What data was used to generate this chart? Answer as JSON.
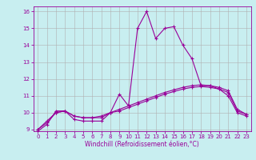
{
  "xlabel": "Windchill (Refroidissement éolien,°C)",
  "x_values": [
    0,
    1,
    2,
    3,
    4,
    5,
    6,
    7,
    8,
    9,
    10,
    11,
    12,
    13,
    14,
    15,
    16,
    17,
    18,
    19,
    20,
    21,
    22,
    23
  ],
  "line1_y": [
    8.9,
    9.3,
    10.1,
    10.1,
    9.6,
    9.5,
    9.5,
    9.5,
    10.0,
    11.1,
    10.4,
    15.0,
    16.0,
    14.4,
    15.0,
    15.1,
    14.0,
    13.2,
    11.6,
    11.6,
    11.4,
    11.0,
    10.0,
    9.8
  ],
  "line2_y": [
    9.0,
    9.5,
    10.0,
    10.1,
    9.8,
    9.7,
    9.7,
    9.8,
    10.0,
    10.2,
    10.4,
    10.6,
    10.8,
    11.0,
    11.2,
    11.35,
    11.5,
    11.6,
    11.65,
    11.6,
    11.5,
    11.3,
    10.2,
    9.9
  ],
  "line3_y": [
    9.0,
    9.4,
    10.0,
    10.1,
    9.8,
    9.7,
    9.7,
    9.7,
    10.0,
    10.1,
    10.3,
    10.5,
    10.7,
    10.9,
    11.1,
    11.25,
    11.4,
    11.5,
    11.55,
    11.5,
    11.4,
    11.2,
    10.1,
    9.9
  ],
  "line_color": "#990099",
  "bg_color": "#c8eef0",
  "grid_color": "#b0b0b0",
  "ylim": [
    9,
    16
  ],
  "xlim": [
    -0.5,
    23.5
  ],
  "yticks": [
    9,
    10,
    11,
    12,
    13,
    14,
    15,
    16
  ],
  "xticks": [
    0,
    1,
    2,
    3,
    4,
    5,
    6,
    7,
    8,
    9,
    10,
    11,
    12,
    13,
    14,
    15,
    16,
    17,
    18,
    19,
    20,
    21,
    22,
    23
  ],
  "tick_fontsize": 5.0,
  "xlabel_fontsize": 5.5,
  "linewidth": 0.8,
  "markersize": 2.5,
  "markeredgewidth": 0.8
}
